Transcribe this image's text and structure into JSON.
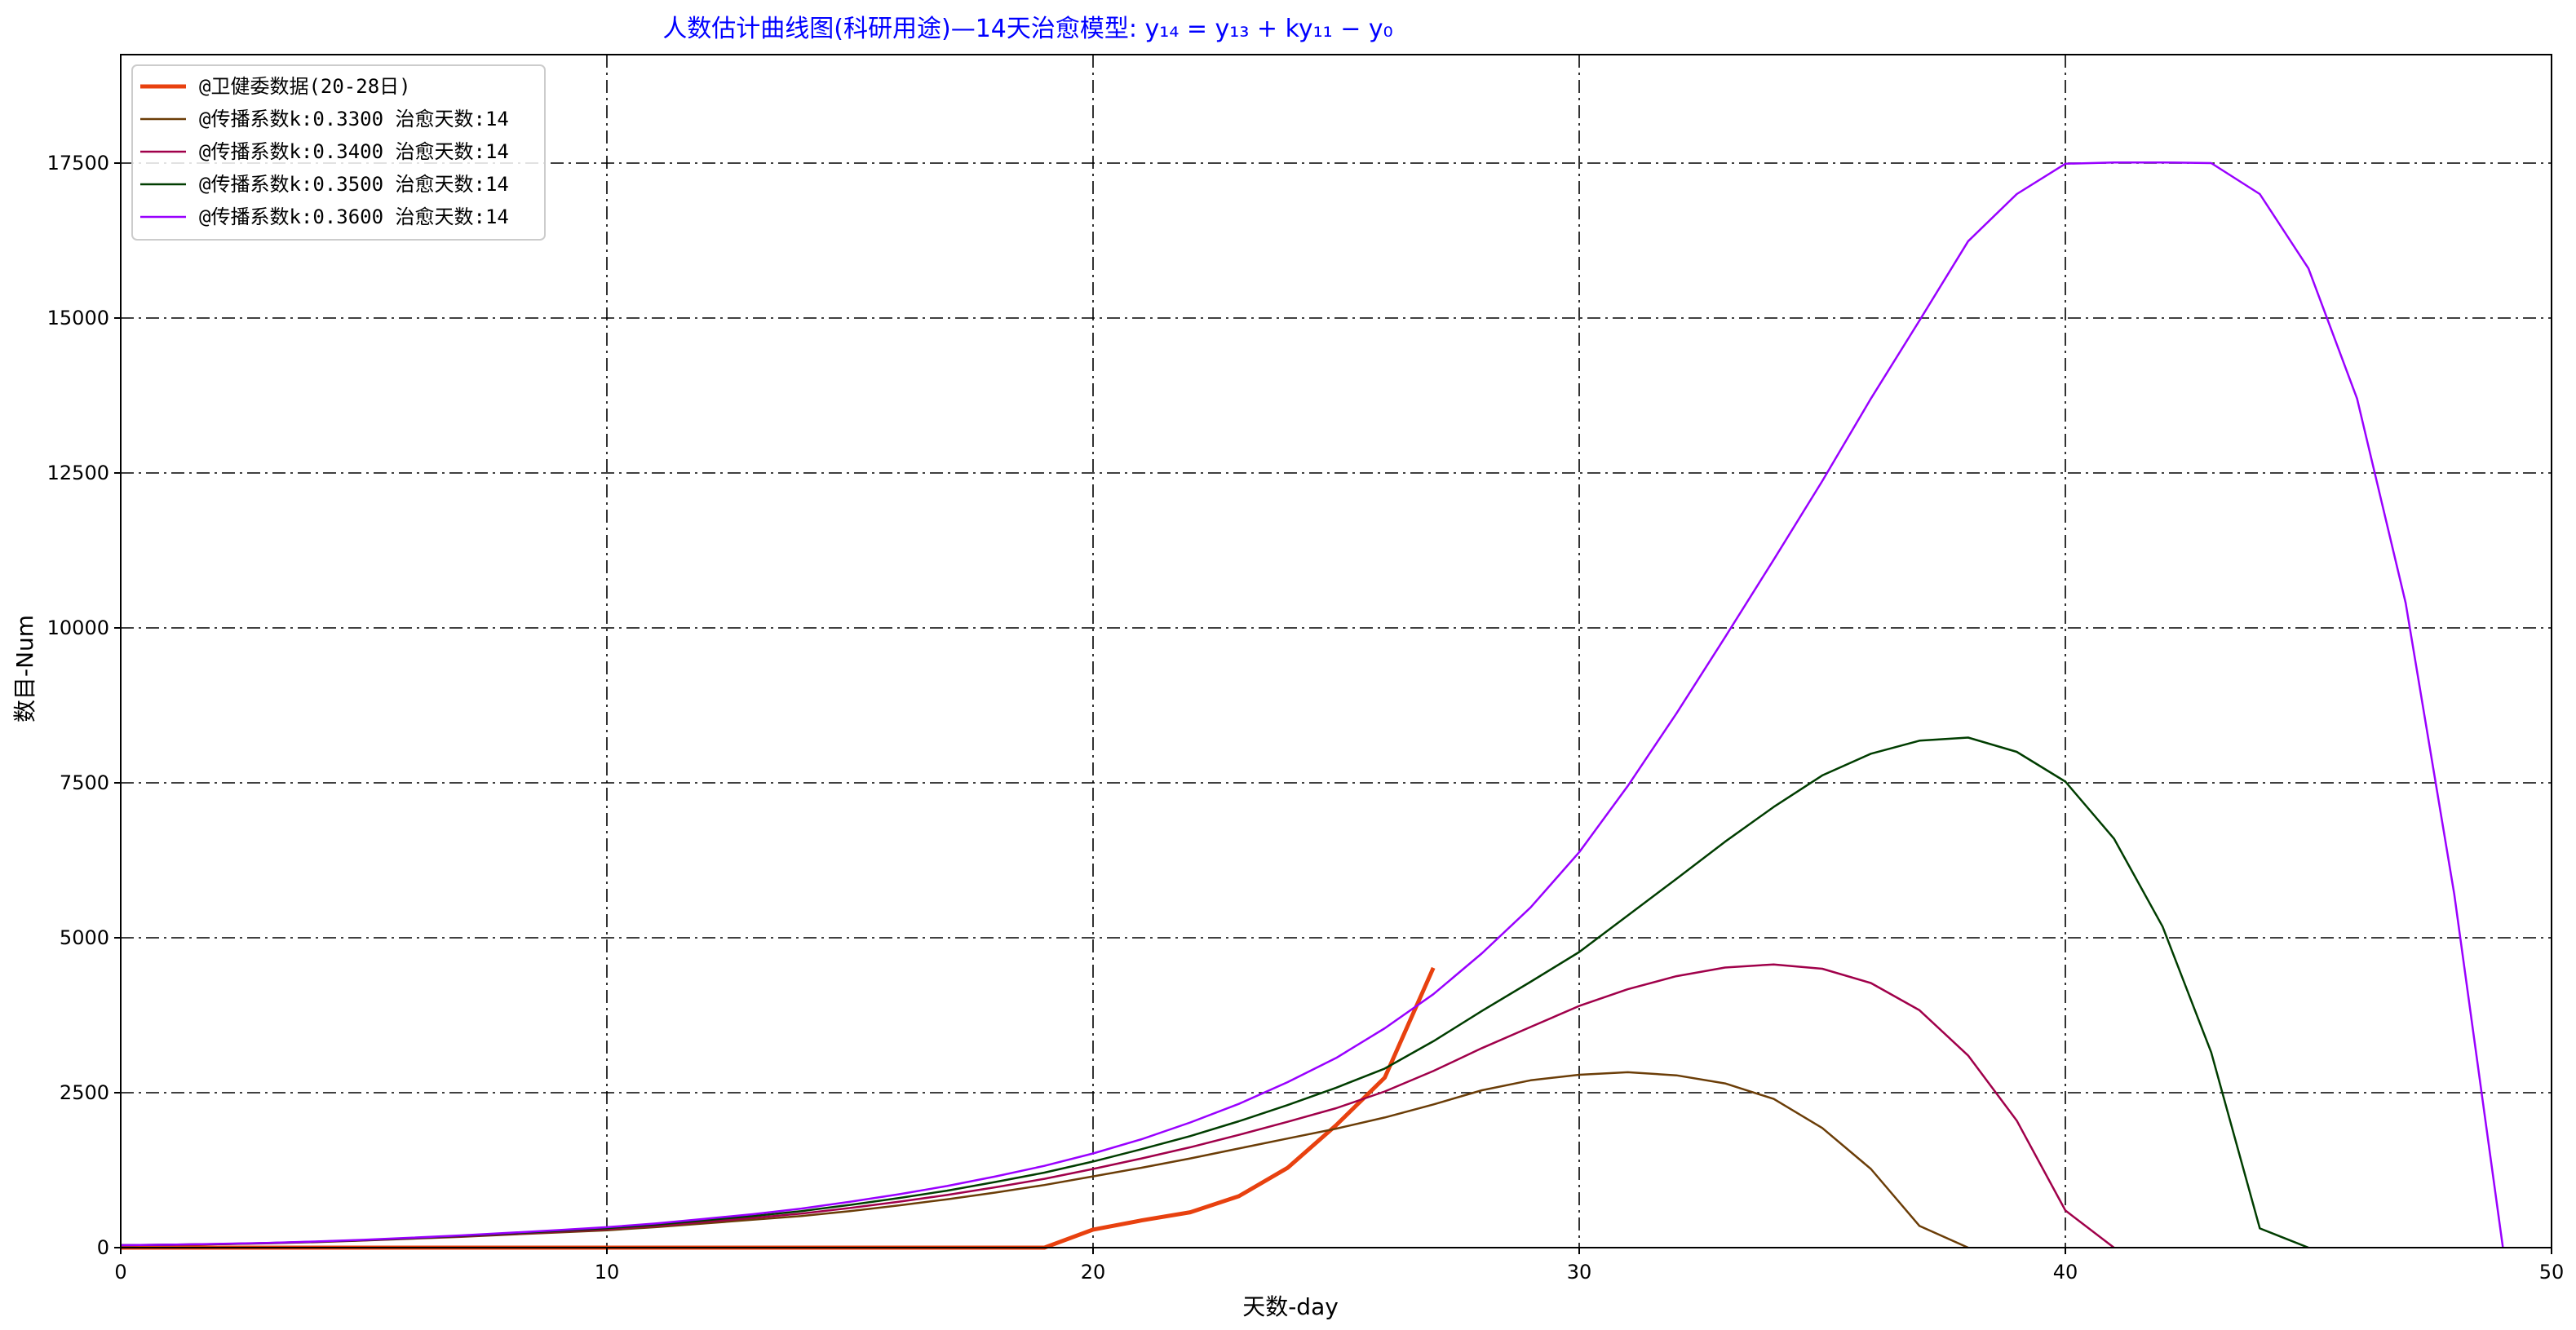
{
  "chart_data": {
    "type": "line",
    "title": "人数估计曲线图(科研用途)—14天治愈模型: y₁₄ = y₁₃ + ky₁₁ − y₀",
    "xlabel": "天数-day",
    "ylabel": "数目-Num",
    "xlim": [
      0,
      50
    ],
    "ylim": [
      0,
      19250
    ],
    "xticks": [
      0,
      10,
      20,
      30,
      40,
      50
    ],
    "yticks": [
      0,
      2500,
      5000,
      7500,
      10000,
      12500,
      15000,
      17500
    ],
    "grid": true,
    "legend_position": "top-left",
    "series": [
      {
        "name": "@卫健委数据(20-28日)",
        "color": "#e8410f",
        "width": 5,
        "x": [
          0,
          1,
          2,
          3,
          4,
          5,
          6,
          7,
          8,
          9,
          10,
          11,
          12,
          13,
          14,
          15,
          16,
          17,
          18,
          19,
          20,
          21,
          22,
          23,
          24,
          25,
          26,
          27
        ],
        "values": [
          0,
          0,
          0,
          0,
          0,
          0,
          0,
          0,
          0,
          0,
          0,
          0,
          0,
          0,
          0,
          0,
          0,
          0,
          0,
          0,
          291,
          440,
          571,
          830,
          1287,
          1975,
          2744,
          4515
        ]
      },
      {
        "name": "@传播系数k:0.3300 治愈天数:14",
        "color": "#6b3d07",
        "width": 2.5,
        "x": [
          0,
          1,
          2,
          3,
          4,
          5,
          6,
          7,
          8,
          9,
          10,
          11,
          12,
          13,
          14,
          15,
          16,
          17,
          18,
          19,
          20,
          21,
          22,
          23,
          24,
          25,
          26,
          27,
          28,
          29,
          30,
          31,
          32,
          33,
          34,
          35,
          36,
          37,
          38
        ],
        "values": [
          40,
          45,
          55,
          70,
          90,
          115,
          145,
          175,
          210,
          245,
          280,
          330,
          390,
          450,
          510,
          590,
          680,
          780,
          890,
          1010,
          1150,
          1290,
          1440,
          1600,
          1760,
          1920,
          2100,
          2310,
          2540,
          2700,
          2790,
          2830,
          2780,
          2650,
          2400,
          1930,
          1270,
          350,
          0
        ]
      },
      {
        "name": "@传播系数k:0.3400 治愈天数:14",
        "color": "#a0004a",
        "width": 2.5,
        "x": [
          0,
          1,
          2,
          3,
          4,
          5,
          6,
          7,
          8,
          9,
          10,
          11,
          12,
          13,
          14,
          15,
          16,
          17,
          18,
          19,
          20,
          21,
          22,
          23,
          24,
          25,
          26,
          27,
          28,
          29,
          30,
          31,
          32,
          33,
          34,
          35,
          36,
          37,
          38,
          39,
          40,
          41
        ],
        "values": [
          40,
          46,
          57,
          72,
          93,
          118,
          150,
          182,
          220,
          258,
          298,
          350,
          415,
          480,
          550,
          640,
          740,
          850,
          975,
          1110,
          1270,
          1440,
          1620,
          1820,
          2030,
          2250,
          2520,
          2850,
          3220,
          3560,
          3900,
          4170,
          4380,
          4520,
          4570,
          4500,
          4270,
          3830,
          3100,
          2050,
          600,
          0
        ]
      },
      {
        "name": "@传播系数k:0.3500 治愈天数:14",
        "color": "#003d00",
        "width": 2.5,
        "x": [
          0,
          1,
          2,
          3,
          4,
          5,
          6,
          7,
          8,
          9,
          10,
          11,
          12,
          13,
          14,
          15,
          16,
          17,
          18,
          19,
          20,
          21,
          22,
          23,
          24,
          25,
          26,
          27,
          28,
          29,
          30,
          31,
          32,
          33,
          34,
          35,
          36,
          37,
          38,
          39,
          40,
          41,
          42,
          43,
          44,
          45
        ],
        "values": [
          40,
          47,
          58,
          74,
          96,
          122,
          155,
          190,
          230,
          270,
          315,
          370,
          440,
          510,
          590,
          690,
          800,
          920,
          1060,
          1210,
          1390,
          1590,
          1800,
          2040,
          2300,
          2580,
          2890,
          3330,
          3820,
          4290,
          4770,
          5360,
          5950,
          6550,
          7110,
          7620,
          7970,
          8180,
          8230,
          8000,
          7520,
          6600,
          5180,
          3150,
          310,
          0
        ]
      },
      {
        "name": "@传播系数k:0.3600 治愈天数:14",
        "color": "#9900ff",
        "width": 2.5,
        "x": [
          0,
          1,
          2,
          3,
          4,
          5,
          6,
          7,
          8,
          9,
          10,
          11,
          12,
          13,
          14,
          15,
          16,
          17,
          18,
          19,
          20,
          21,
          22,
          23,
          24,
          25,
          26,
          27,
          28,
          29,
          30,
          31,
          32,
          33,
          34,
          35,
          36,
          37,
          38,
          39,
          40,
          41,
          42,
          43,
          44,
          45,
          46,
          47,
          48,
          49
        ],
        "values": [
          40,
          48,
          60,
          76,
          99,
          126,
          160,
          197,
          240,
          283,
          330,
          390,
          465,
          540,
          630,
          740,
          860,
          995,
          1150,
          1320,
          1520,
          1750,
          2020,
          2320,
          2670,
          3060,
          3540,
          4090,
          4750,
          5490,
          6380,
          7450,
          8620,
          9850,
          11100,
          12370,
          13700,
          14960,
          16240,
          17000,
          17490,
          17510,
          17510,
          17500,
          17000,
          15800,
          13700,
          10400,
          5700,
          0
        ]
      }
    ]
  }
}
